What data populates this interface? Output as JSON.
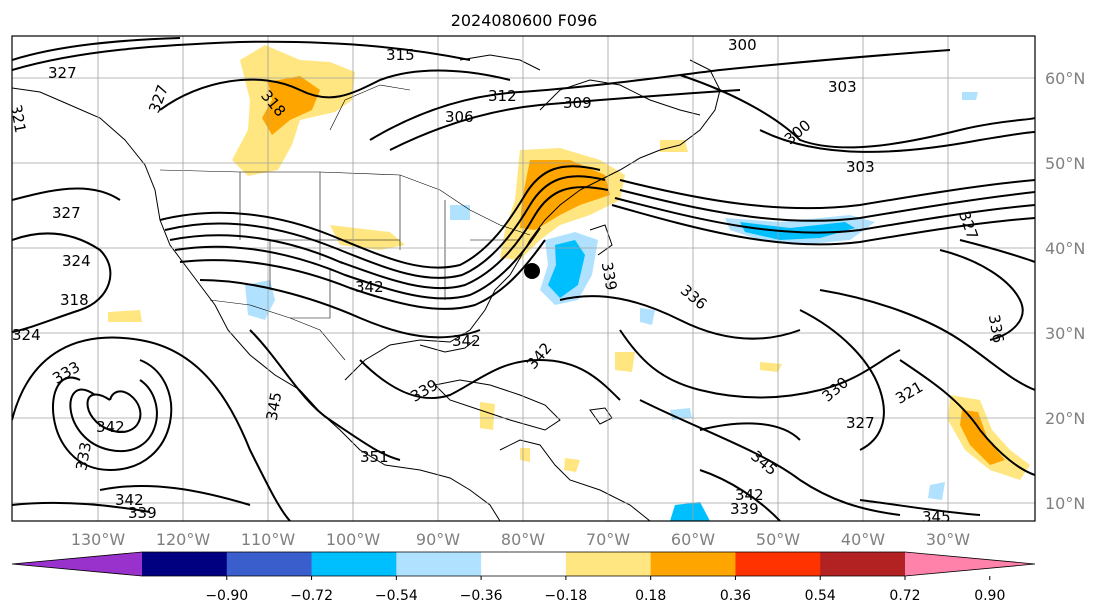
{
  "title": "2024080600 F096",
  "longitude_labels": [
    "130°W",
    "120°W",
    "110°W",
    "100°W",
    "90°W",
    "80°W",
    "70°W",
    "60°W",
    "50°W",
    "40°W",
    "30°W"
  ],
  "latitude_labels": [
    "60°N",
    "50°N",
    "40°N",
    "30°N",
    "20°N",
    "10°N"
  ],
  "colorbar": {
    "colors": [
      "#9932cc",
      "#000080",
      "#3a5fcd",
      "#00bfff",
      "#b0e2ff",
      "#ffffff",
      "#ffe680",
      "#ffa500",
      "#ff3300",
      "#b22222",
      "#ff82ab"
    ],
    "tick_labels": [
      "−0.90",
      "−0.72",
      "−0.54",
      "−0.36",
      "−0.18",
      "0.18",
      "0.36",
      "0.54",
      "0.72",
      "0.90"
    ]
  },
  "contour_labels": [
    "327",
    "321",
    "327",
    "315",
    "318",
    "306",
    "312",
    "309",
    "300",
    "303",
    "300",
    "303",
    "327",
    "324",
    "318",
    "324",
    "327",
    "342",
    "336",
    "339",
    "342",
    "339",
    "342",
    "345",
    "333",
    "342",
    "333",
    "342",
    "339",
    "351",
    "345",
    "330",
    "321",
    "327",
    "336",
    "342",
    "339",
    "345"
  ],
  "marker": "storm-center-dot"
}
